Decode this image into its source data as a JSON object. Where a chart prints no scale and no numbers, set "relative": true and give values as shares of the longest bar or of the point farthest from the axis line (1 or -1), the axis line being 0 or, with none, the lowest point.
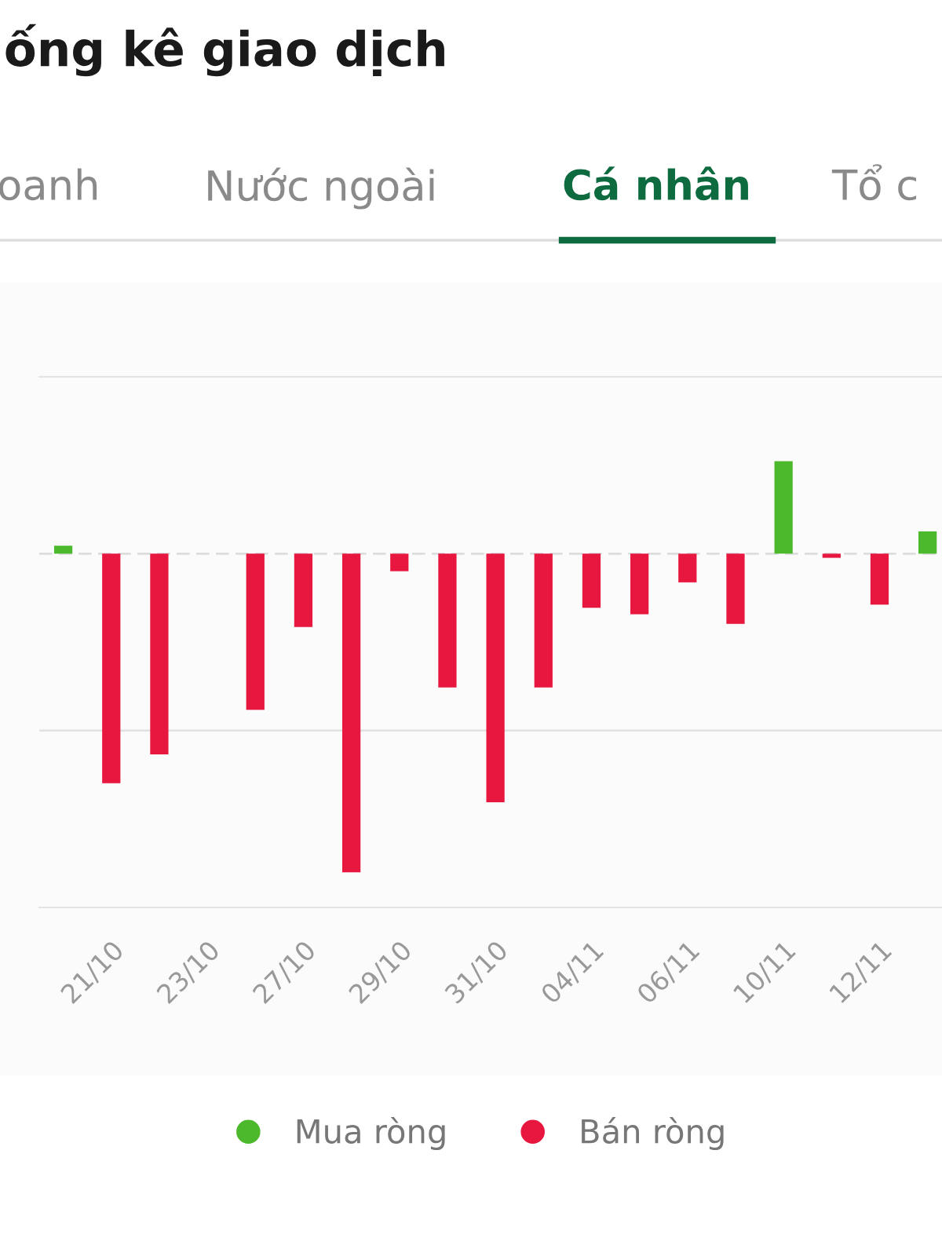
{
  "chart_data": {
    "type": "bar",
    "title": "ống kê giao dịch",
    "annotations": [
      "oanh",
      "Nước ngoài",
      "Cá nhân",
      "Tổ c"
    ],
    "categories": [
      null,
      "21/10",
      null,
      "23/10",
      null,
      "27/10",
      null,
      "29/10",
      null,
      "31/10",
      null,
      "04/11",
      null,
      "06/11",
      null,
      "10/11",
      null,
      "12/11",
      null
    ],
    "series": [
      {
        "name": "Mua ròng",
        "color": "#4cb82c",
        "values": [
          0.025,
          null,
          null,
          null,
          null,
          null,
          null,
          null,
          null,
          null,
          null,
          null,
          null,
          null,
          null,
          0.29,
          null,
          null,
          0.07
        ]
      },
      {
        "name": "Bán ròng",
        "color": "#e8173f",
        "values": [
          null,
          -0.72,
          -0.63,
          0,
          -0.49,
          -0.23,
          -1,
          -0.055,
          -0.42,
          -0.78,
          -0.42,
          -0.17,
          -0.19,
          -0.09,
          -0.22,
          null,
          -0.013,
          -0.16,
          null
        ]
      }
    ],
    "ref_lines": [
      {
        "axis": "y",
        "value": 0,
        "color": "#dddddd",
        "line_style": "dashed"
      },
      {
        "axis": "y",
        "value": -0.555,
        "color": "#e3e3e3"
      }
    ],
    "relative": true,
    "legend": "bottom"
  }
}
